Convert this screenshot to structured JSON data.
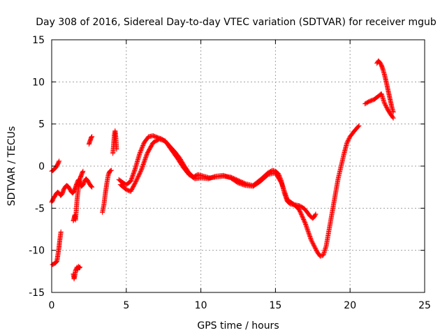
{
  "chart_data": {
    "type": "scatter",
    "title": "Day 308 of 2016, Sidereal Day-to-day VTEC variation (SDTVAR) for receiver mgub",
    "xlabel": "GPS time / hours",
    "ylabel": "SDTVAR / TECUs",
    "xlim": [
      0,
      25
    ],
    "ylim": [
      -15,
      15
    ],
    "x_ticks": [
      0,
      5,
      10,
      15,
      20,
      25
    ],
    "y_ticks": [
      -15,
      -10,
      -5,
      0,
      5,
      10,
      15
    ],
    "grid": true,
    "marker": "+",
    "series": [
      {
        "name": "SDTVAR",
        "color": "#ff0000",
        "segments": [
          {
            "name": "early-upper",
            "x": [
              0.0,
              0.1,
              0.2,
              0.3,
              0.4,
              0.5
            ],
            "y": [
              -0.6,
              -0.5,
              -0.3,
              -0.1,
              0.2,
              0.6
            ]
          },
          {
            "name": "early-main",
            "x": [
              0.0,
              0.1,
              0.2,
              0.3,
              0.4,
              0.5,
              0.6,
              0.7,
              0.8,
              0.9,
              1.0,
              1.1,
              1.2,
              1.3,
              1.4,
              1.5,
              1.6,
              1.7,
              1.8,
              1.9,
              2.0,
              2.1,
              2.2,
              2.3,
              2.4,
              2.5,
              2.6,
              2.7
            ],
            "y": [
              -4.3,
              -3.9,
              -3.6,
              -3.3,
              -3.1,
              -3.2,
              -3.5,
              -3.3,
              -2.8,
              -2.5,
              -2.3,
              -2.4,
              -2.7,
              -3.0,
              -3.2,
              -3.0,
              -2.5,
              -2.0,
              -1.6,
              -2.0,
              -2.4,
              -2.2,
              -1.8,
              -1.5,
              -1.7,
              -2.0,
              -2.3,
              -2.5
            ]
          },
          {
            "name": "early-lower",
            "x": [
              0.05,
              0.15,
              0.25,
              0.35,
              0.42,
              0.48,
              0.53,
              0.58,
              0.62
            ],
            "y": [
              -11.7,
              -11.6,
              -11.5,
              -11.3,
              -10.5,
              -9.8,
              -9.0,
              -8.3,
              -7.8
            ]
          },
          {
            "name": "dip-cluster",
            "x": [
              1.45,
              1.5,
              1.55,
              1.6,
              1.65,
              1.7,
              1.75,
              1.8,
              1.85,
              1.9
            ],
            "y": [
              -12.8,
              -13.4,
              -13.0,
              -12.4,
              -12.2,
              -12.0,
              -12.3,
              -11.9,
              -12.1,
              -12.0
            ]
          },
          {
            "name": "dip-rise",
            "x": [
              1.45,
              1.5,
              1.55,
              1.6,
              1.7,
              1.8,
              1.9,
              2.0,
              2.1
            ],
            "y": [
              -6.5,
              -6.2,
              -5.8,
              -6.4,
              -4.0,
              -2.5,
              -1.5,
              -1.0,
              -0.6
            ]
          },
          {
            "name": "spike-2.6",
            "x": [
              2.5,
              2.55,
              2.6,
              2.65,
              2.7
            ],
            "y": [
              2.6,
              2.9,
              3.1,
              3.4,
              3.5
            ]
          },
          {
            "name": "rise-3.5",
            "x": [
              3.4,
              3.5,
              3.6,
              3.7,
              3.8,
              3.9,
              4.0
            ],
            "y": [
              -5.5,
              -4.6,
              -3.2,
              -2.0,
              -1.0,
              -0.6,
              -0.5
            ]
          },
          {
            "name": "spike-4.2",
            "x": [
              4.1,
              4.15,
              4.2,
              4.25,
              4.3,
              4.35
            ],
            "y": [
              1.5,
              2.5,
              3.7,
              4.2,
              3.4,
              2.0
            ]
          },
          {
            "name": "main-upper",
            "x": [
              4.5,
              4.8,
              5.0,
              5.3,
              5.6,
              5.9,
              6.2,
              6.5,
              6.8,
              7.1,
              7.4,
              7.7,
              8.0,
              8.3,
              8.6,
              8.9,
              9.2,
              9.5,
              9.8,
              10.2,
              10.6,
              11.0,
              11.5,
              12.0,
              12.5,
              13.0,
              13.5,
              14.0,
              14.5,
              14.8,
              15.0,
              15.2,
              15.4,
              15.6,
              15.8,
              16.0,
              16.3,
              16.6,
              16.9,
              17.1,
              17.3,
              17.5,
              17.6,
              17.7
            ],
            "y": [
              -1.6,
              -2.0,
              -2.2,
              -1.8,
              -0.3,
              1.5,
              2.8,
              3.5,
              3.6,
              3.4,
              3.2,
              2.8,
              2.2,
              1.6,
              0.9,
              0.0,
              -0.8,
              -1.3,
              -1.0,
              -1.2,
              -1.4,
              -1.3,
              -1.2,
              -1.3,
              -1.7,
              -2.1,
              -2.3,
              -1.6,
              -0.8,
              -0.5,
              -0.6,
              -0.9,
              -1.8,
              -3.2,
              -4.2,
              -4.5,
              -4.6,
              -4.7,
              -5.0,
              -5.4,
              -5.9,
              -6.2,
              -6.0,
              -5.7
            ]
          },
          {
            "name": "main-lower",
            "x": [
              4.6,
              5.0,
              5.3,
              5.6,
              6.0,
              6.4,
              6.8,
              7.2,
              7.6,
              8.0,
              8.4,
              8.8,
              9.2,
              9.6,
              10.0,
              10.5,
              11.0,
              11.5,
              12.0,
              12.5,
              13.0,
              13.5,
              14.0,
              14.5,
              15.0,
              15.4,
              15.8,
              16.2,
              16.6,
              17.0,
              17.4,
              17.8,
              18.0,
              18.2,
              18.4,
              18.6,
              18.8,
              19.0,
              19.2,
              19.4,
              19.6,
              19.8,
              20.0,
              20.3,
              20.6
            ],
            "y": [
              -2.2,
              -2.8,
              -3.0,
              -2.0,
              -0.5,
              1.5,
              2.8,
              3.2,
              3.0,
              2.0,
              1.0,
              -0.1,
              -1.0,
              -1.5,
              -1.4,
              -1.5,
              -1.2,
              -1.1,
              -1.4,
              -2.0,
              -2.3,
              -2.4,
              -1.8,
              -1.0,
              -0.8,
              -2.0,
              -4.0,
              -4.5,
              -5.2,
              -6.8,
              -8.8,
              -10.2,
              -10.7,
              -10.6,
              -9.5,
              -7.5,
              -5.5,
              -3.5,
              -1.5,
              0.0,
              1.5,
              2.8,
              3.5,
              4.2,
              4.8
            ]
          },
          {
            "name": "late-lower",
            "x": [
              21.0,
              21.3,
              21.6,
              21.9,
              22.1,
              22.3,
              22.5,
              22.7,
              22.9
            ],
            "y": [
              7.4,
              7.7,
              7.9,
              8.3,
              8.6,
              7.5,
              6.8,
              6.2,
              5.7
            ]
          },
          {
            "name": "late-upper",
            "x": [
              21.8,
              21.9,
              22.0,
              22.1,
              22.2,
              22.3,
              22.4,
              22.5,
              22.6,
              22.7,
              22.8,
              22.9
            ],
            "y": [
              12.2,
              12.5,
              12.3,
              12.0,
              11.5,
              10.9,
              10.2,
              9.4,
              8.6,
              7.8,
              7.0,
              6.4
            ]
          }
        ]
      }
    ]
  }
}
